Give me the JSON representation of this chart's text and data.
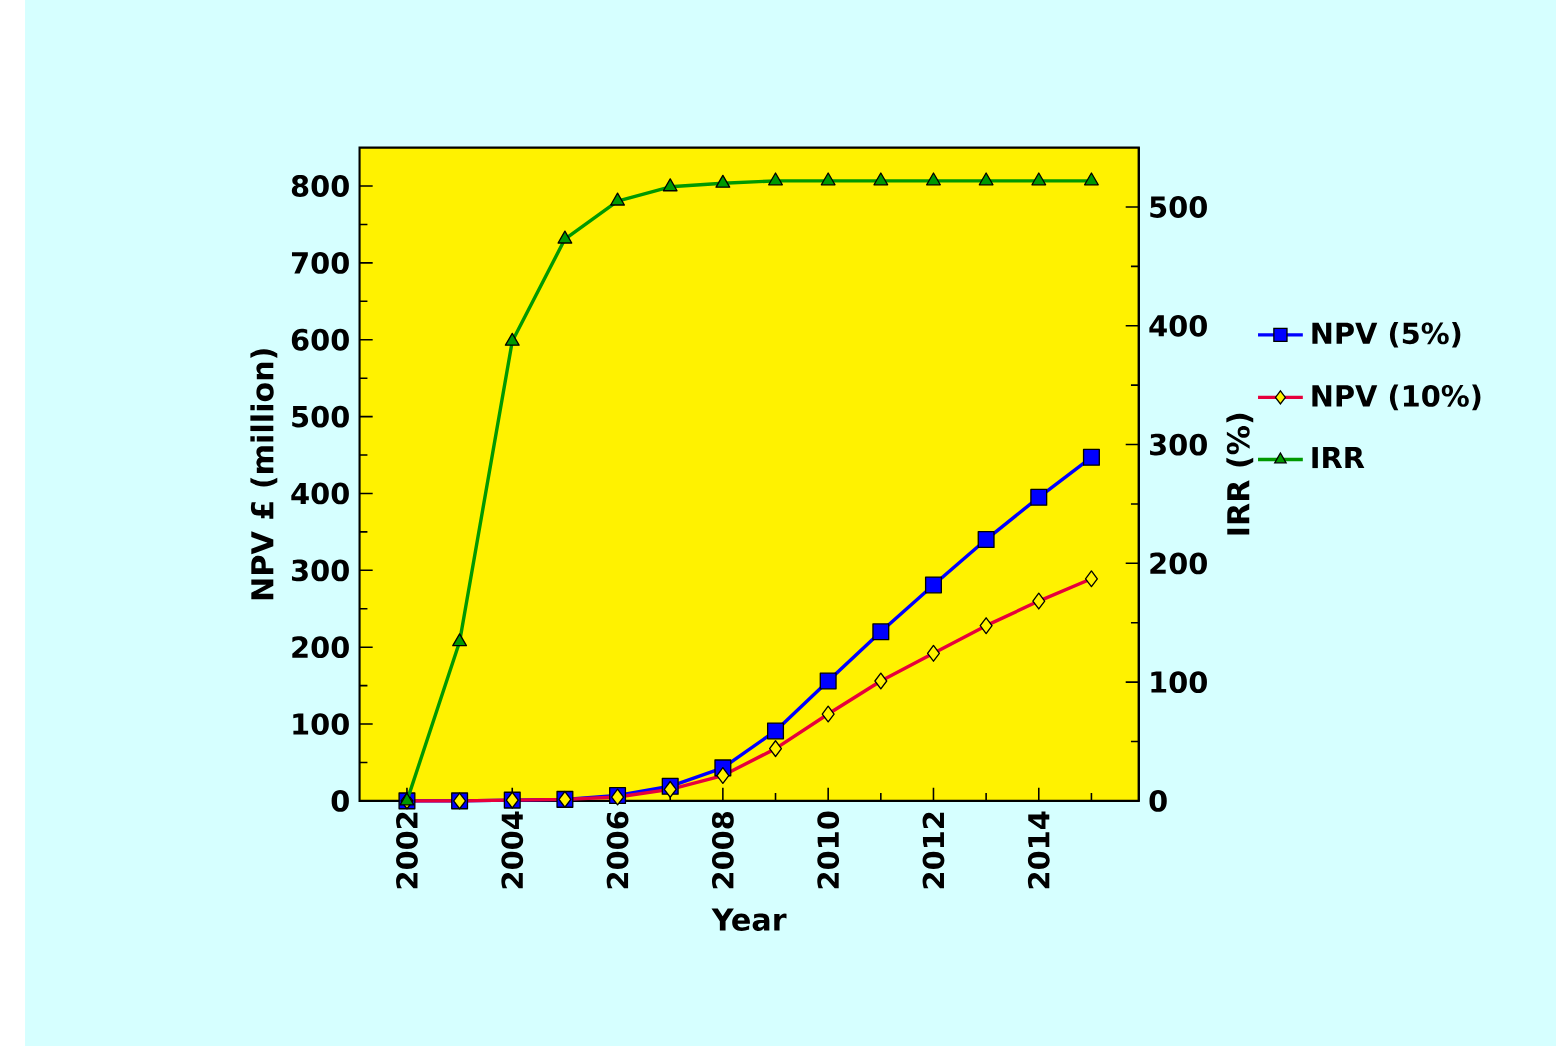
{
  "chart_data": {
    "type": "line",
    "xlabel": "Year",
    "ylabel": "NPV £ (million)",
    "y2label": "IRR (%)",
    "x": [
      2002,
      2003,
      2004,
      2005,
      2006,
      2007,
      2008,
      2009,
      2010,
      2011,
      2012,
      2013,
      2014,
      2015
    ],
    "series": [
      {
        "name": "NPV (5%)",
        "color": "#0000ff",
        "marker": "square",
        "values": [
          0,
          0,
          1,
          2,
          7,
          19,
          43,
          91,
          156,
          220,
          281,
          340,
          395,
          447
        ]
      },
      {
        "name": "NPV (10%)",
        "color": "#e6003c",
        "marker": "diamond",
        "values": [
          0,
          0,
          1,
          2,
          5,
          15,
          33,
          68,
          113,
          156,
          192,
          228,
          260,
          289
        ]
      },
      {
        "name": "IRR",
        "color": "#009900",
        "marker": "triangle",
        "axis": "y2",
        "values": [
          0,
          134,
          387,
          473,
          505,
          517,
          520,
          522,
          522,
          522,
          522,
          522,
          522,
          522
        ]
      }
    ],
    "xlim": [
      2001.1,
      2015.9
    ],
    "xticks": [
      2002,
      {
        "value": 2003,
        "label": null
      },
      2004,
      {
        "value": 2005,
        "label": null
      },
      2006,
      {
        "value": 2007,
        "label": null
      },
      2008,
      {
        "value": 2009,
        "label": null
      },
      2010,
      {
        "value": 2011,
        "label": null
      },
      2012,
      {
        "value": 2013,
        "label": null
      },
      2014,
      {
        "value": 2015,
        "label": null
      }
    ],
    "ylim": [
      0,
      850
    ],
    "yticks": [
      0,
      {
        "value": 50,
        "label": null
      },
      100,
      {
        "value": 150,
        "label": null
      },
      200,
      {
        "value": 250,
        "label": null
      },
      300,
      {
        "value": 350,
        "label": null
      },
      400,
      {
        "value": 450,
        "label": null
      },
      500,
      {
        "value": 550,
        "label": null
      },
      600,
      {
        "value": 650,
        "label": null
      },
      700,
      {
        "value": 750,
        "label": null
      },
      800
    ],
    "y2lim": [
      0,
      550
    ],
    "y2ticks": [
      0,
      {
        "value": 50,
        "label": null
      },
      100,
      {
        "value": 150,
        "label": null
      },
      200,
      {
        "value": 250,
        "label": null
      },
      300,
      {
        "value": 350,
        "label": null
      },
      400,
      {
        "value": 450,
        "label": null
      },
      500
    ],
    "grid": false,
    "legend": "right",
    "line_style": "solid"
  }
}
